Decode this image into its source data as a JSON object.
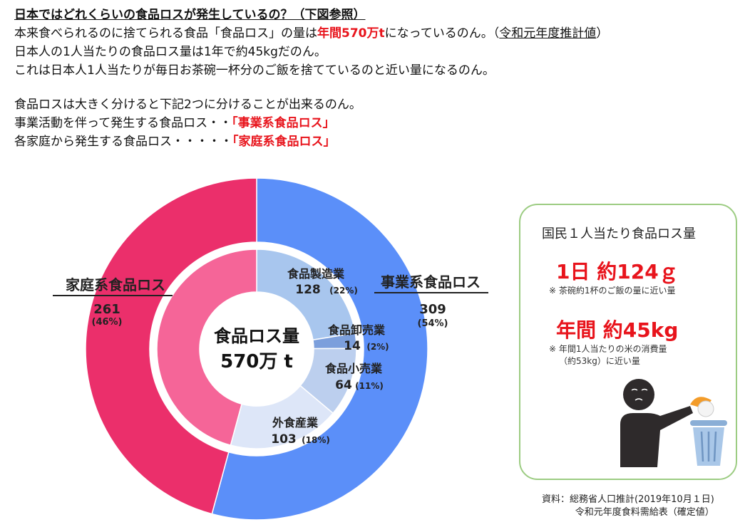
{
  "intro": {
    "heading": "日本ではどれくらいの食品ロスが発生しているの？（下図参照）",
    "line1_a": "本来食べられるのに捨てられる食品「食品ロス」の量は",
    "line1_b": "年間570万t",
    "line1_c": "になっているのん。（",
    "line1_d": "令和元年度推計値",
    "line1_e": "）",
    "line2": "日本人の1人当たりの食品ロス量は1年で約45kgだのん。",
    "line3": "これは日本人1人当たりが毎日お茶碗一杯分のご飯を捨てているのと近い量になるのん。",
    "line4": "食品ロスは大きく分けると下記2つに分けることが出来るのん。",
    "line5_a": "事業活動を伴って発生する食品ロス・・",
    "line5_b": "「事業系食品ロス」",
    "line6_a": "各家庭から発生する食品ロス・・・・・",
    "line6_b": "「家庭系食品ロス」"
  },
  "chart_data": {
    "type": "pie",
    "center_label": [
      "食品ロス量",
      "570万 t"
    ],
    "outer": [
      {
        "name": "事業系食品ロス",
        "value": 309,
        "pct": "(54%)",
        "color": "#5b8ff9"
      },
      {
        "name": "家庭系食品ロス",
        "value": 261,
        "pct": "(46%)",
        "color": "#eb2f6b"
      }
    ],
    "inner": [
      {
        "name": "食品製造業",
        "value": 128,
        "pct": "(22%)",
        "color": "#a8c6ee"
      },
      {
        "name": "食品卸売業",
        "value": 14,
        "pct": "(2%)",
        "color": "#7c9fdc"
      },
      {
        "name": "食品小売業",
        "value": 64,
        "pct": "(11%)",
        "color": "#bccfee"
      },
      {
        "name": "外食産業",
        "value": 103,
        "pct": "(18%)",
        "color": "#dde6f8"
      },
      {
        "name": "家庭系食品ロス",
        "value": 261,
        "pct": "",
        "color": "#f56598"
      }
    ]
  },
  "card": {
    "title": "国民１人当たり食品ロス量",
    "daily": "1日 約124ｇ",
    "daily_note": "※ 茶碗約1杯のご飯の量に近い量",
    "yearly": "年間 約45kg",
    "yearly_note1": "※ 年間1人当たりの米の消費量",
    "yearly_note2": "（約53kg）に近い量",
    "illustration": "person-throwing-rice-into-trash-icon"
  },
  "source": {
    "line1": "資料：総務省人口推計(2019年10月１日)",
    "line2": "令和元年度食料需給表（確定値）"
  }
}
